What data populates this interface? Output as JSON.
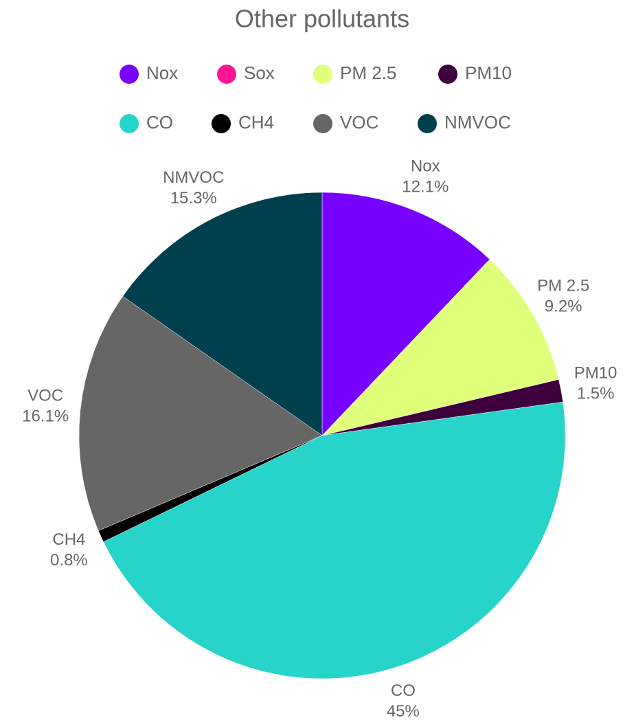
{
  "chart_data": {
    "type": "pie",
    "title": "Other pollutants",
    "categories": [
      "Nox",
      "Sox",
      "PM 2.5",
      "PM10",
      "CO",
      "CH4",
      "VOC",
      "NMVOC"
    ],
    "values": [
      12.1,
      0,
      9.2,
      1.5,
      45,
      0.8,
      16.1,
      15.3
    ],
    "value_labels": [
      "12.1%",
      null,
      "9.2%",
      "1.5%",
      "45%",
      "0.8%",
      "16.1%",
      "15.3%"
    ],
    "colors": [
      "#7700ff",
      "#ff1493",
      "#e0ff7a",
      "#3d003d",
      "#26d4c9",
      "#000000",
      "#666666",
      "#003f4d"
    ],
    "legend": "top"
  }
}
